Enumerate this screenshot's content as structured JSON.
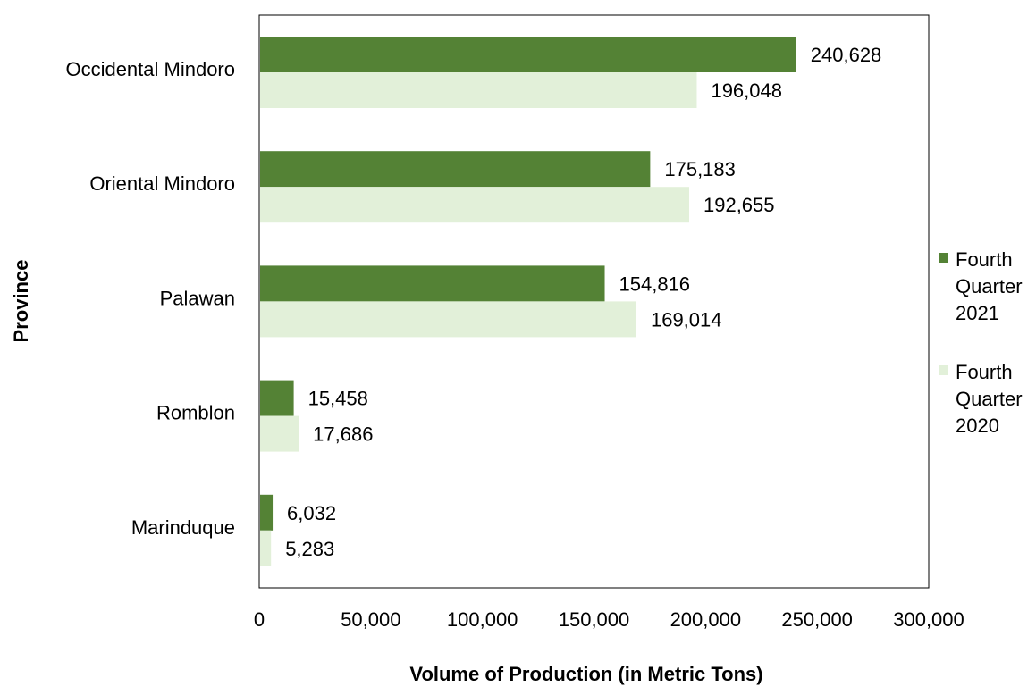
{
  "chart_data": {
    "type": "bar",
    "orientation": "horizontal",
    "categories": [
      "Occidental Mindoro",
      "Oriental Mindoro",
      "Palawan",
      "Romblon",
      "Marinduque"
    ],
    "series": [
      {
        "name": "Fourth Quarter 2021",
        "color": "#548235",
        "values": [
          240628,
          175183,
          154816,
          15458,
          6032
        ],
        "labels": [
          "240,628",
          "175,183",
          "154,816",
          "15,458",
          "6,032"
        ]
      },
      {
        "name": "Fourth Quarter 2020",
        "color": "#E2F0D9",
        "values": [
          196048,
          192655,
          169014,
          17686,
          5283
        ],
        "labels": [
          "196,048",
          "192,655",
          "169,014",
          "17,686",
          "5,283"
        ]
      }
    ],
    "xlabel": "Volume of Production (in Metric Tons)",
    "ylabel": "Province",
    "xlim": [
      0,
      300000
    ],
    "xticks": [
      0,
      50000,
      100000,
      150000,
      200000,
      250000,
      300000
    ],
    "xtick_labels": [
      "0",
      "50,000",
      "100,000",
      "150,000",
      "200,000",
      "250,000",
      "300,000"
    ],
    "grid": false,
    "legend_position": "right"
  }
}
